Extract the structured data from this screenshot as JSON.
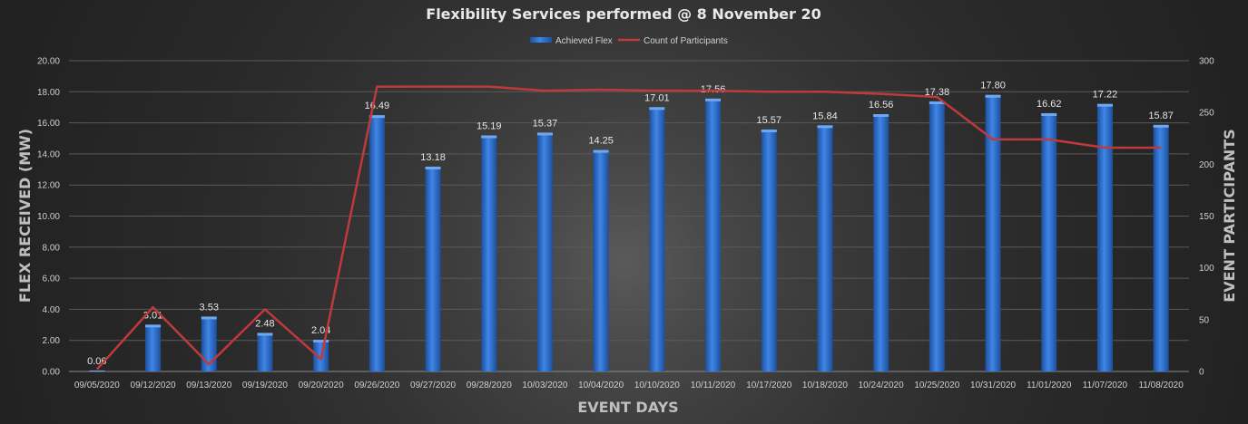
{
  "chart_data": {
    "type": "bar",
    "title": "Flexibility Services performed @ 8 November 20",
    "xlabel": "EVENT DAYS",
    "ylabel": "FLEX RECEIVED (MW)",
    "y2label": "EVENT PARTICIPANTS",
    "ylim": [
      0,
      20
    ],
    "y2lim": [
      0,
      300
    ],
    "yticks": [
      "0.00",
      "2.00",
      "4.00",
      "6.00",
      "8.00",
      "10.00",
      "12.00",
      "14.00",
      "16.00",
      "18.00",
      "20.00"
    ],
    "y2ticks": [
      "0",
      "50",
      "100",
      "150",
      "200",
      "250",
      "300"
    ],
    "legend_position": "top",
    "categories": [
      "09/05/2020",
      "09/12/2020",
      "09/13/2020",
      "09/19/2020",
      "09/20/2020",
      "09/26/2020",
      "09/27/2020",
      "09/28/2020",
      "10/03/2020",
      "10/04/2020",
      "10/10/2020",
      "10/11/2020",
      "10/17/2020",
      "10/18/2020",
      "10/24/2020",
      "10/25/2020",
      "10/31/2020",
      "11/01/2020",
      "11/07/2020",
      "11/08/2020"
    ],
    "series": [
      {
        "name": "Achieved Flex",
        "type": "bar",
        "axis": "left",
        "color": "#2e6fce",
        "values": [
          0.06,
          3.01,
          3.53,
          2.48,
          2.04,
          16.49,
          13.18,
          15.19,
          15.37,
          14.25,
          17.01,
          17.56,
          15.57,
          15.84,
          16.56,
          17.38,
          17.8,
          16.62,
          17.22,
          15.87
        ],
        "labels": [
          "0.06",
          "3.01",
          "3.53",
          "2.48",
          "2.04",
          "16.49",
          "13.18",
          "15.19",
          "15.37",
          "14.25",
          "17.01",
          "17.56",
          "15.57",
          "15.84",
          "16.56",
          "17.38",
          "17.80",
          "16.62",
          "17.22",
          "15.87"
        ]
      },
      {
        "name": "Count of Participants",
        "type": "line",
        "axis": "right",
        "color": "#c0393b",
        "values": [
          2,
          62,
          7,
          60,
          12,
          275,
          275,
          275,
          271,
          272,
          271,
          271,
          270,
          270,
          268,
          265,
          224,
          224,
          216,
          216
        ]
      }
    ]
  }
}
